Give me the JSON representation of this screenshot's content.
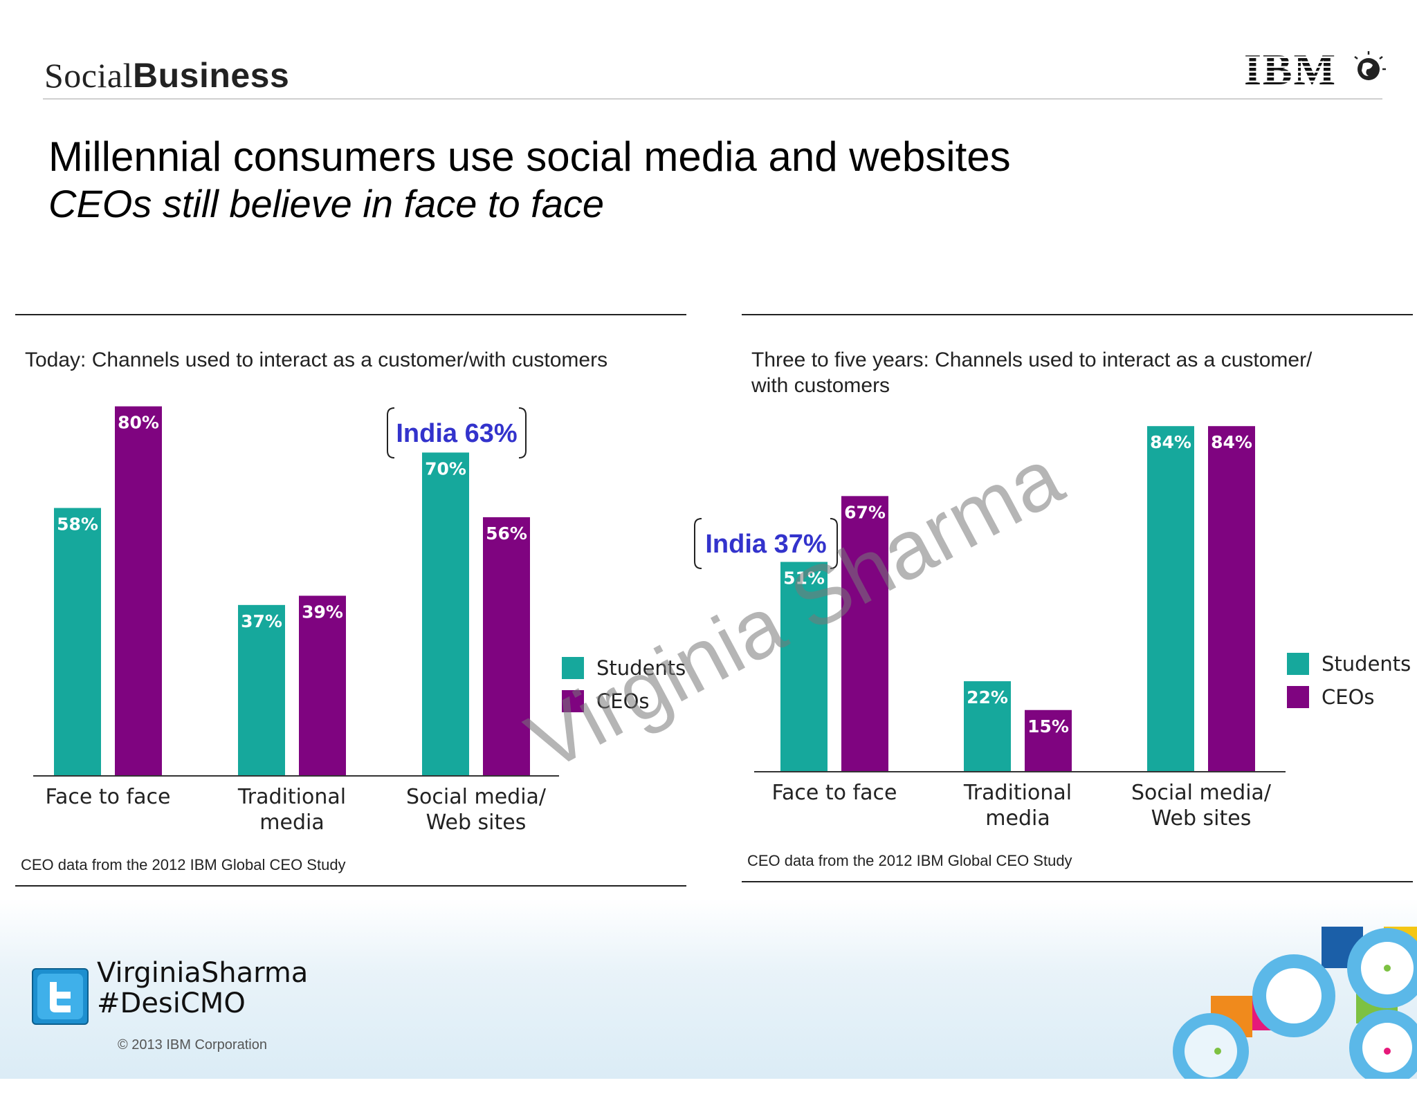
{
  "header": {
    "brand_light": "Social",
    "brand_bold": "Business",
    "logo": "IBM"
  },
  "slide": {
    "title": "Millennial consumers use social media and websites",
    "subtitle": "CEOs still believe in face to face",
    "watermark": "Virginia Sharma"
  },
  "chart_data": [
    {
      "type": "bar",
      "title": "Today: Channels used to interact as a customer/with customers",
      "categories": [
        "Face to face",
        "Traditional media",
        "Social media/ Web sites"
      ],
      "category_lines": [
        [
          "Face to face"
        ],
        [
          "Traditional",
          "media"
        ],
        [
          "Social media/",
          "Web sites"
        ]
      ],
      "series": [
        {
          "name": "Students",
          "values": [
            58,
            37,
            70
          ],
          "color": "#16a89c"
        },
        {
          "name": "CEOs",
          "values": [
            80,
            39,
            56
          ],
          "color": "#7f0480"
        }
      ],
      "value_labels": {
        "Students": [
          "58%",
          "37%",
          "70%"
        ],
        "CEOs": [
          "80%",
          "39%",
          "56%"
        ]
      },
      "ylim": [
        0,
        100
      ],
      "legend_placement": "right",
      "grid": false,
      "annotation": {
        "text": "India 63%",
        "category": "Social media/ Web sites",
        "series": "Students"
      },
      "source": "CEO data from the 2012 IBM Global CEO Study"
    },
    {
      "type": "bar",
      "title": "Three to five years: Channels used to interact as a customer/ with customers",
      "title_lines": [
        "Three to five years: Channels used to interact as a customer/",
        "with customers"
      ],
      "categories": [
        "Face to face",
        "Traditional media",
        "Social media/ Web sites"
      ],
      "category_lines": [
        [
          "Face to face"
        ],
        [
          "Traditional",
          "media"
        ],
        [
          "Social media/",
          "Web sites"
        ]
      ],
      "series": [
        {
          "name": "Students",
          "values": [
            51,
            22,
            84
          ],
          "color": "#16a89c"
        },
        {
          "name": "CEOs",
          "values": [
            67,
            15,
            84
          ],
          "color": "#7f0480"
        }
      ],
      "value_labels": {
        "Students": [
          "51%",
          "22%",
          "84%"
        ],
        "CEOs": [
          "67%",
          "15%",
          "84%"
        ]
      },
      "ylim": [
        0,
        100
      ],
      "legend_placement": "right",
      "grid": false,
      "annotation": {
        "text": "India 37%",
        "category": "Face to face",
        "series": "Students"
      },
      "source": "CEO data from the 2012 IBM Global CEO Study"
    }
  ],
  "footer": {
    "twitter_icon": "twitter-bird-icon",
    "twitter_name": "VirginiaSharma",
    "twitter_tag": "#DesiCMO",
    "copyright": "© 2013 IBM Corporation"
  }
}
